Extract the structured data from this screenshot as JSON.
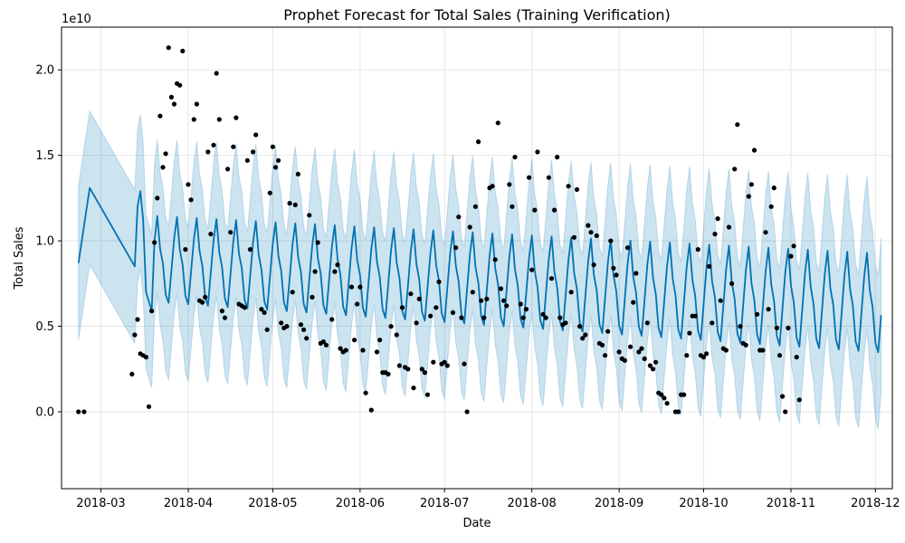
{
  "chart_data": {
    "type": "line",
    "title": "Prophet Forecast for Total Sales (Training Verification)",
    "xlabel": "Date",
    "ylabel": "Total Sales",
    "y_offset_label": "1e10",
    "x_ticks": [
      "2018-03",
      "2018-04",
      "2018-05",
      "2018-06",
      "2018-07",
      "2018-08",
      "2018-09",
      "2018-10",
      "2018-11",
      "2018-12"
    ],
    "x_tick_dates": [
      "2018-03-01",
      "2018-04-01",
      "2018-05-01",
      "2018-06-01",
      "2018-07-01",
      "2018-08-01",
      "2018-09-01",
      "2018-10-01",
      "2018-11-01",
      "2018-12-01"
    ],
    "y_ticks": [
      "0.0",
      "0.5",
      "1.0",
      "1.5",
      "2.0"
    ],
    "y_tick_values": [
      0.0,
      0.5,
      1.0,
      1.5,
      2.0
    ],
    "xlim": [
      "2018-02-15",
      "2018-12-07"
    ],
    "ylim": [
      -0.45,
      2.25
    ],
    "grid": true,
    "colors": {
      "forecast": "#0072B2",
      "band": "#0072B2",
      "actual": "#000000"
    },
    "forecast_points": [
      [
        "2018-02-21",
        0.87
      ],
      [
        "2018-02-25",
        1.31
      ],
      [
        "2018-03-13",
        0.85
      ],
      [
        "2018-03-14",
        1.2
      ],
      [
        "2018-03-15",
        1.29
      ],
      [
        "2018-03-16",
        1.12
      ],
      [
        "2018-03-17",
        0.7
      ],
      [
        "2018-03-19",
        0.59
      ],
      [
        "2018-03-20",
        1.0
      ]
    ],
    "forecast_periodic": {
      "start": "2018-03-20",
      "end": "2018-12-03",
      "period_days": 7,
      "weekly_pattern": [
        1.0,
        1.13,
        0.93,
        0.84,
        0.65,
        0.6,
        0.8
      ],
      "base_start": 0.88,
      "base_end": 0.62
    },
    "band_half_width": 0.45,
    "actual_points": [
      [
        "2018-02-21",
        0.0
      ],
      [
        "2018-02-23",
        0.0
      ],
      [
        "2018-03-12",
        0.22
      ],
      [
        "2018-03-13",
        0.45
      ],
      [
        "2018-03-14",
        0.54
      ],
      [
        "2018-03-15",
        0.34
      ],
      [
        "2018-03-16",
        0.33
      ],
      [
        "2018-03-17",
        0.32
      ],
      [
        "2018-03-18",
        0.03
      ],
      [
        "2018-03-19",
        0.59
      ],
      [
        "2018-03-20",
        0.99
      ],
      [
        "2018-03-21",
        1.25
      ],
      [
        "2018-03-22",
        1.73
      ],
      [
        "2018-03-23",
        1.43
      ],
      [
        "2018-03-24",
        1.51
      ],
      [
        "2018-03-25",
        2.13
      ],
      [
        "2018-03-26",
        1.84
      ],
      [
        "2018-03-27",
        1.8
      ],
      [
        "2018-03-28",
        1.92
      ],
      [
        "2018-03-29",
        1.91
      ],
      [
        "2018-03-30",
        2.11
      ],
      [
        "2018-03-31",
        0.95
      ],
      [
        "2018-04-01",
        1.33
      ],
      [
        "2018-04-02",
        1.24
      ],
      [
        "2018-04-03",
        1.71
      ],
      [
        "2018-04-04",
        1.8
      ],
      [
        "2018-04-05",
        0.65
      ],
      [
        "2018-04-06",
        0.64
      ],
      [
        "2018-04-07",
        0.67
      ],
      [
        "2018-04-08",
        1.52
      ],
      [
        "2018-04-09",
        1.04
      ],
      [
        "2018-04-10",
        1.56
      ],
      [
        "2018-04-11",
        1.98
      ],
      [
        "2018-04-12",
        1.71
      ],
      [
        "2018-04-13",
        0.59
      ],
      [
        "2018-04-14",
        0.55
      ],
      [
        "2018-04-15",
        1.42
      ],
      [
        "2018-04-16",
        1.05
      ],
      [
        "2018-04-17",
        1.55
      ],
      [
        "2018-04-18",
        1.72
      ],
      [
        "2018-04-19",
        0.63
      ],
      [
        "2018-04-20",
        0.62
      ],
      [
        "2018-04-21",
        0.61
      ],
      [
        "2018-04-22",
        1.47
      ],
      [
        "2018-04-23",
        0.95
      ],
      [
        "2018-04-24",
        1.52
      ],
      [
        "2018-04-25",
        1.62
      ],
      [
        "2018-04-27",
        0.6
      ],
      [
        "2018-04-28",
        0.58
      ],
      [
        "2018-04-29",
        0.48
      ],
      [
        "2018-04-30",
        1.28
      ],
      [
        "2018-05-01",
        1.55
      ],
      [
        "2018-05-02",
        1.43
      ],
      [
        "2018-05-03",
        1.47
      ],
      [
        "2018-05-04",
        0.52
      ],
      [
        "2018-05-05",
        0.49
      ],
      [
        "2018-05-06",
        0.5
      ],
      [
        "2018-05-07",
        1.22
      ],
      [
        "2018-05-08",
        0.7
      ],
      [
        "2018-05-09",
        1.21
      ],
      [
        "2018-05-10",
        1.39
      ],
      [
        "2018-05-11",
        0.51
      ],
      [
        "2018-05-12",
        0.48
      ],
      [
        "2018-05-13",
        0.43
      ],
      [
        "2018-05-14",
        1.15
      ],
      [
        "2018-05-15",
        0.67
      ],
      [
        "2018-05-16",
        0.82
      ],
      [
        "2018-05-17",
        0.99
      ],
      [
        "2018-05-18",
        0.4
      ],
      [
        "2018-05-19",
        0.41
      ],
      [
        "2018-05-20",
        0.39
      ],
      [
        "2018-05-22",
        0.54
      ],
      [
        "2018-05-23",
        0.82
      ],
      [
        "2018-05-24",
        0.86
      ],
      [
        "2018-05-25",
        0.37
      ],
      [
        "2018-05-26",
        0.35
      ],
      [
        "2018-05-27",
        0.36
      ],
      [
        "2018-05-29",
        0.73
      ],
      [
        "2018-05-30",
        0.42
      ],
      [
        "2018-05-31",
        0.63
      ],
      [
        "2018-06-01",
        0.73
      ],
      [
        "2018-06-02",
        0.36
      ],
      [
        "2018-06-03",
        0.11
      ],
      [
        "2018-06-05",
        0.01
      ],
      [
        "2018-06-07",
        0.35
      ],
      [
        "2018-06-08",
        0.42
      ],
      [
        "2018-06-09",
        0.23
      ],
      [
        "2018-06-10",
        0.23
      ],
      [
        "2018-06-11",
        0.22
      ],
      [
        "2018-06-12",
        0.5
      ],
      [
        "2018-06-14",
        0.45
      ],
      [
        "2018-06-15",
        0.27
      ],
      [
        "2018-06-16",
        0.61
      ],
      [
        "2018-06-17",
        0.26
      ],
      [
        "2018-06-18",
        0.25
      ],
      [
        "2018-06-19",
        0.69
      ],
      [
        "2018-06-20",
        0.14
      ],
      [
        "2018-06-21",
        0.52
      ],
      [
        "2018-06-22",
        0.66
      ],
      [
        "2018-06-23",
        0.25
      ],
      [
        "2018-06-24",
        0.23
      ],
      [
        "2018-06-25",
        0.1
      ],
      [
        "2018-06-26",
        0.56
      ],
      [
        "2018-06-27",
        0.29
      ],
      [
        "2018-06-28",
        0.61
      ],
      [
        "2018-06-29",
        0.76
      ],
      [
        "2018-06-30",
        0.28
      ],
      [
        "2018-07-01",
        0.29
      ],
      [
        "2018-07-02",
        0.27
      ],
      [
        "2018-07-04",
        0.58
      ],
      [
        "2018-07-05",
        0.96
      ],
      [
        "2018-07-06",
        1.14
      ],
      [
        "2018-07-07",
        0.55
      ],
      [
        "2018-07-08",
        0.28
      ],
      [
        "2018-07-09",
        0.0
      ],
      [
        "2018-07-10",
        1.08
      ],
      [
        "2018-07-11",
        0.7
      ],
      [
        "2018-07-12",
        1.2
      ],
      [
        "2018-07-13",
        1.58
      ],
      [
        "2018-07-14",
        0.65
      ],
      [
        "2018-07-15",
        0.55
      ],
      [
        "2018-07-16",
        0.66
      ],
      [
        "2018-07-17",
        1.31
      ],
      [
        "2018-07-18",
        1.32
      ],
      [
        "2018-07-19",
        0.89
      ],
      [
        "2018-07-20",
        1.69
      ],
      [
        "2018-07-21",
        0.72
      ],
      [
        "2018-07-22",
        0.65
      ],
      [
        "2018-07-23",
        0.62
      ],
      [
        "2018-07-24",
        1.33
      ],
      [
        "2018-07-25",
        1.2
      ],
      [
        "2018-07-26",
        1.49
      ],
      [
        "2018-07-28",
        0.63
      ],
      [
        "2018-07-29",
        0.55
      ],
      [
        "2018-07-30",
        0.6
      ],
      [
        "2018-07-31",
        1.37
      ],
      [
        "2018-08-01",
        0.83
      ],
      [
        "2018-08-02",
        1.18
      ],
      [
        "2018-08-03",
        1.52
      ],
      [
        "2018-08-05",
        0.57
      ],
      [
        "2018-08-06",
        0.55
      ],
      [
        "2018-08-07",
        1.37
      ],
      [
        "2018-08-08",
        0.78
      ],
      [
        "2018-08-09",
        1.18
      ],
      [
        "2018-08-10",
        1.49
      ],
      [
        "2018-08-11",
        0.55
      ],
      [
        "2018-08-12",
        0.51
      ],
      [
        "2018-08-13",
        0.52
      ],
      [
        "2018-08-14",
        1.32
      ],
      [
        "2018-08-15",
        0.7
      ],
      [
        "2018-08-16",
        1.02
      ],
      [
        "2018-08-17",
        1.3
      ],
      [
        "2018-08-18",
        0.5
      ],
      [
        "2018-08-19",
        0.43
      ],
      [
        "2018-08-20",
        0.45
      ],
      [
        "2018-08-21",
        1.09
      ],
      [
        "2018-08-22",
        1.05
      ],
      [
        "2018-08-23",
        0.86
      ],
      [
        "2018-08-24",
        1.03
      ],
      [
        "2018-08-25",
        0.4
      ],
      [
        "2018-08-26",
        0.39
      ],
      [
        "2018-08-27",
        0.33
      ],
      [
        "2018-08-28",
        0.47
      ],
      [
        "2018-08-29",
        1.0
      ],
      [
        "2018-08-30",
        0.84
      ],
      [
        "2018-08-31",
        0.8
      ],
      [
        "2018-09-01",
        0.35
      ],
      [
        "2018-09-02",
        0.31
      ],
      [
        "2018-09-03",
        0.3
      ],
      [
        "2018-09-04",
        0.96
      ],
      [
        "2018-09-05",
        0.38
      ],
      [
        "2018-09-06",
        0.64
      ],
      [
        "2018-09-07",
        0.81
      ],
      [
        "2018-09-08",
        0.35
      ],
      [
        "2018-09-09",
        0.37
      ],
      [
        "2018-09-10",
        0.31
      ],
      [
        "2018-09-11",
        0.52
      ],
      [
        "2018-09-12",
        0.27
      ],
      [
        "2018-09-13",
        0.25
      ],
      [
        "2018-09-14",
        0.29
      ],
      [
        "2018-09-15",
        0.11
      ],
      [
        "2018-09-16",
        0.1
      ],
      [
        "2018-09-17",
        0.08
      ],
      [
        "2018-09-18",
        0.05
      ],
      [
        "2018-09-21",
        0.0
      ],
      [
        "2018-09-22",
        0.0
      ],
      [
        "2018-09-23",
        0.1
      ],
      [
        "2018-09-24",
        0.1
      ],
      [
        "2018-09-25",
        0.33
      ],
      [
        "2018-09-26",
        0.46
      ],
      [
        "2018-09-27",
        0.56
      ],
      [
        "2018-09-28",
        0.56
      ],
      [
        "2018-09-29",
        0.95
      ],
      [
        "2018-09-30",
        0.33
      ],
      [
        "2018-10-01",
        0.32
      ],
      [
        "2018-10-02",
        0.34
      ],
      [
        "2018-10-03",
        0.85
      ],
      [
        "2018-10-04",
        0.52
      ],
      [
        "2018-10-05",
        1.04
      ],
      [
        "2018-10-06",
        1.13
      ],
      [
        "2018-10-07",
        0.65
      ],
      [
        "2018-10-08",
        0.37
      ],
      [
        "2018-10-09",
        0.36
      ],
      [
        "2018-10-10",
        1.08
      ],
      [
        "2018-10-11",
        0.75
      ],
      [
        "2018-10-12",
        1.42
      ],
      [
        "2018-10-13",
        1.68
      ],
      [
        "2018-10-14",
        0.5
      ],
      [
        "2018-10-15",
        0.4
      ],
      [
        "2018-10-16",
        0.39
      ],
      [
        "2018-10-17",
        1.26
      ],
      [
        "2018-10-18",
        1.33
      ],
      [
        "2018-10-19",
        1.53
      ],
      [
        "2018-10-20",
        0.57
      ],
      [
        "2018-10-21",
        0.36
      ],
      [
        "2018-10-22",
        0.36
      ],
      [
        "2018-10-23",
        1.05
      ],
      [
        "2018-10-24",
        0.6
      ],
      [
        "2018-10-25",
        1.2
      ],
      [
        "2018-10-26",
        1.31
      ],
      [
        "2018-10-27",
        0.49
      ],
      [
        "2018-10-28",
        0.33
      ],
      [
        "2018-10-29",
        0.09
      ],
      [
        "2018-10-30",
        0.0
      ],
      [
        "2018-10-31",
        0.49
      ],
      [
        "2018-11-01",
        0.91
      ],
      [
        "2018-11-02",
        0.97
      ],
      [
        "2018-11-03",
        0.32
      ],
      [
        "2018-11-04",
        0.07
      ]
    ]
  }
}
